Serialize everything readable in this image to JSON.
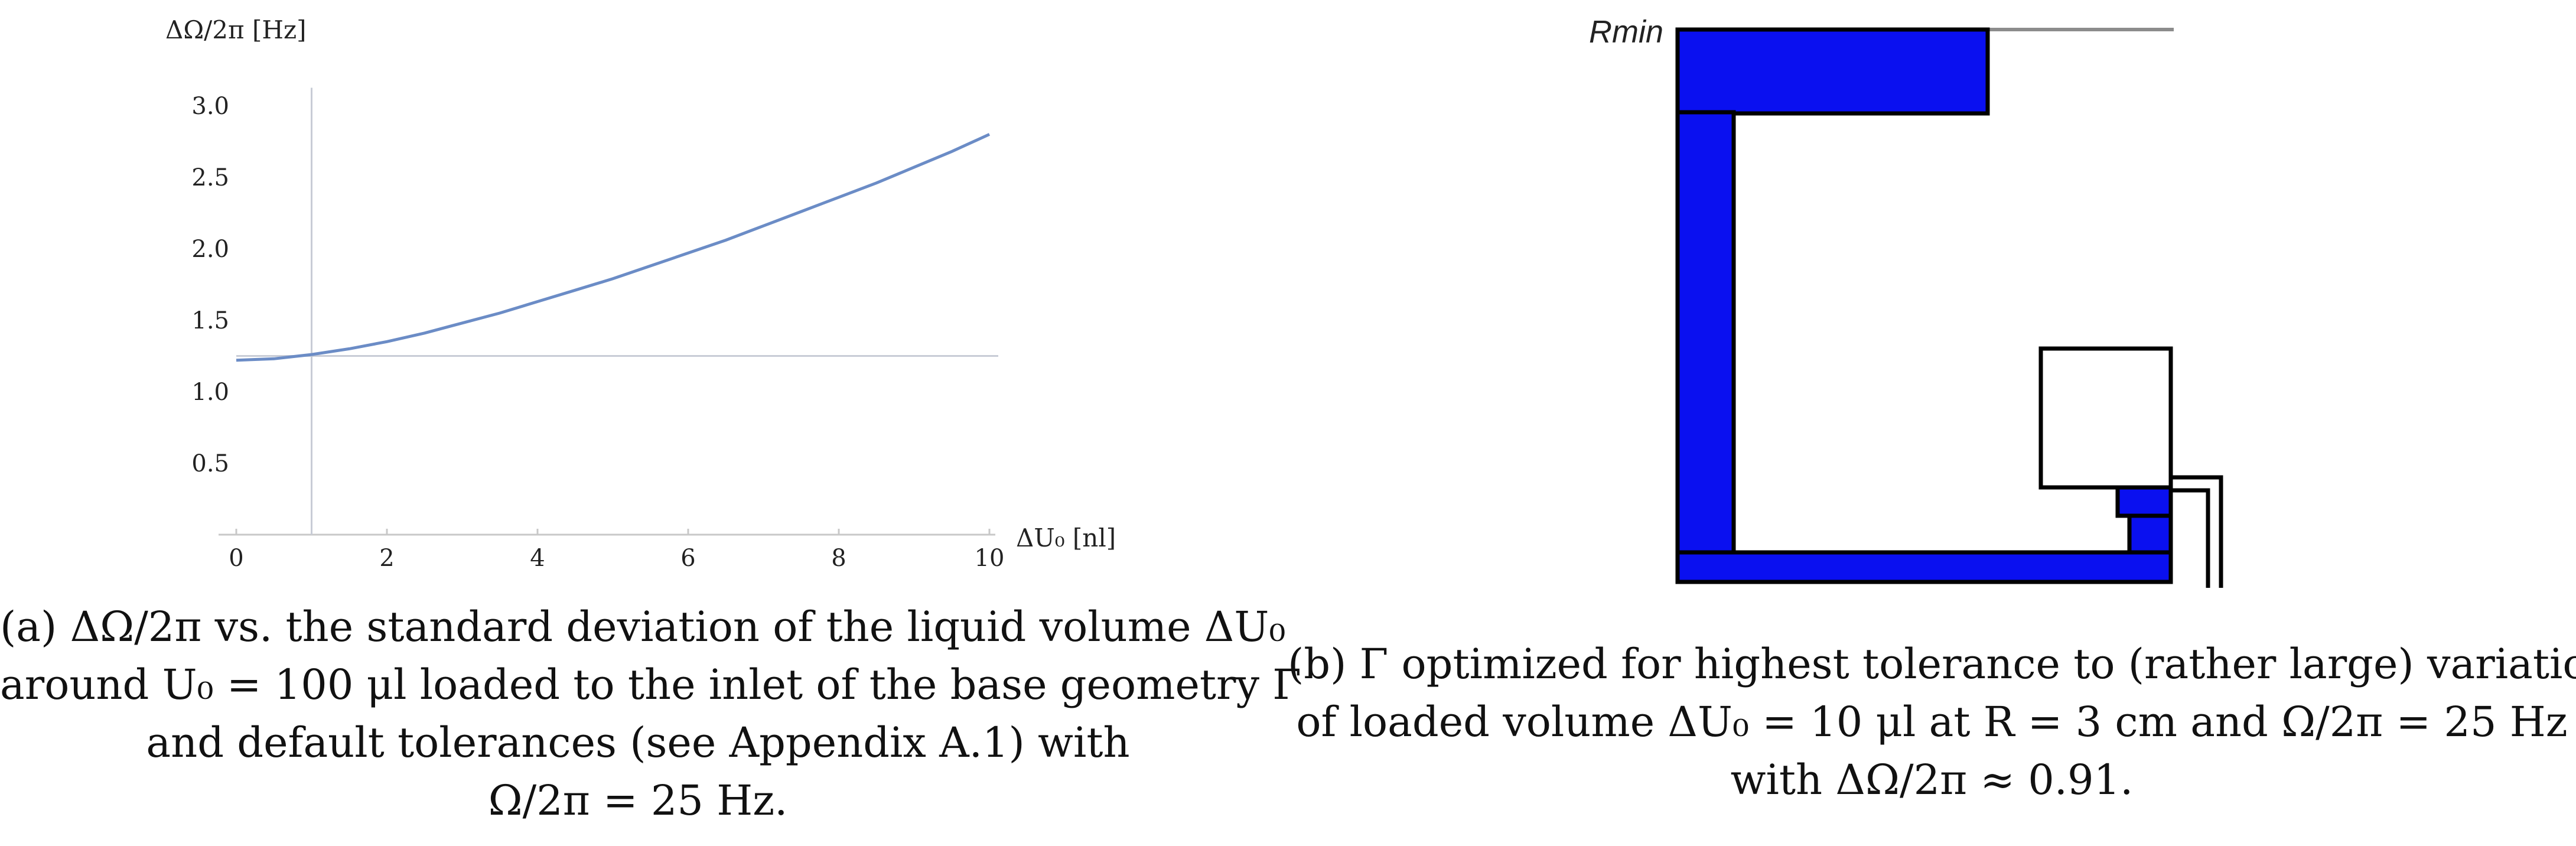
{
  "chart_data": [
    {
      "type": "line",
      "ylabel": "ΔΩ/2π [Hz]",
      "xlabel": "ΔU₀ [nl]",
      "xlim": [
        0,
        10
      ],
      "ylim": [
        0,
        3.25
      ],
      "x_ticks": [
        "0",
        "2",
        "4",
        "6",
        "8",
        "10"
      ],
      "y_ticks": [
        "0.5",
        "1.0",
        "1.5",
        "2.0",
        "2.5",
        "3.0"
      ],
      "reference_lines": {
        "x": 1,
        "y": 1.25
      },
      "series": [
        {
          "color": "#6b8cc6",
          "x": [
            0,
            0.5,
            1,
            1.5,
            2,
            2.5,
            3,
            3.5,
            4,
            4.5,
            5,
            5.5,
            6,
            6.5,
            7,
            7.5,
            8,
            8.5,
            9,
            9.5,
            10
          ],
          "y": [
            1.22,
            1.23,
            1.26,
            1.3,
            1.35,
            1.41,
            1.48,
            1.55,
            1.63,
            1.71,
            1.79,
            1.88,
            1.97,
            2.06,
            2.16,
            2.26,
            2.36,
            2.46,
            2.57,
            2.68,
            2.8
          ]
        }
      ]
    }
  ],
  "diagram": {
    "label": "Rmin",
    "colors": {
      "fill": "#0a10f0",
      "outline": "#000000",
      "line": "#8c8c8c"
    }
  },
  "captions": {
    "a": {
      "line1": "(a)  ΔΩ/2π  vs. the standard deviation of the liquid volume  ΔU₀",
      "line2": "around  U₀ = 100 μl loaded to the inlet of the base geometry  Γ",
      "line3": "and default tolerances (see Appendix A.1) with",
      "line4": "Ω/2π = 25 Hz."
    },
    "b": {
      "line1": "(b)  Γ  optimized for highest tolerance to (rather large) variations",
      "line2": "of loaded volume  ΔU₀ = 10 μl  at  R = 3 cm and  Ω/2π = 25 Hz",
      "line3": "with  ΔΩ/2π ≈ 0.91."
    }
  }
}
